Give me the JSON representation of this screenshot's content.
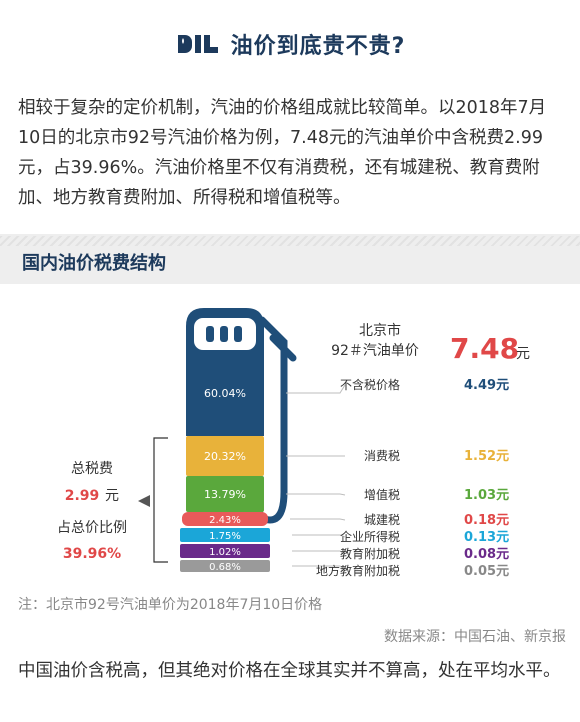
{
  "header": {
    "logo_text": "OIL",
    "title": "油价到底贵不贵?"
  },
  "intro": {
    "paragraph": "相较于复杂的定价机制，汽油的价格组成就比较简单。以2018年7月10日的北京市92号汽油价格为例，7.48元的汽油单价中含税费2.99元，占39.96%。汽油价格里不仅有消费税，还有城建税、教育费附加、地方教育费附加、所得税和增值税等。"
  },
  "section": {
    "title": "国内油价税费结构"
  },
  "chart_data": {
    "type": "bar",
    "title": "国内油价税费结构",
    "price_label_line1": "北京市",
    "price_label_line2": "92＃汽油单价",
    "price_value": "7.48",
    "price_unit": "元",
    "categories": [
      "不含税价格",
      "消费税",
      "增值税",
      "城建税",
      "企业所得税",
      "教育附加税",
      "地方教育附加税"
    ],
    "percent_labels": [
      "60.04%",
      "20.32%",
      "13.79%",
      "2.43%",
      "1.75%",
      "1.02%",
      "0.68%"
    ],
    "percents": [
      60.04,
      20.32,
      13.79,
      2.43,
      1.75,
      1.02,
      0.68
    ],
    "values": [
      4.49,
      1.52,
      1.03,
      0.18,
      0.13,
      0.08,
      0.05
    ],
    "value_labels": [
      "4.49元",
      "1.52元",
      "1.03元",
      "0.18元",
      "0.13元",
      "0.08元",
      "0.05元"
    ],
    "colors": [
      "#1f4e79",
      "#e8b23a",
      "#5aa83c",
      "#e85a5a",
      "#1ba6d8",
      "#6a2a8a",
      "#9a9a9a"
    ],
    "value_colors": [
      "#1f4e79",
      "#e8b23a",
      "#5aa83c",
      "#e04848",
      "#1ba6d8",
      "#6a2a8a",
      "#888888"
    ],
    "total_tax_label": "总税费",
    "total_tax_value": "2.99",
    "total_tax_unit": "元",
    "ratio_label": "占总价比例",
    "ratio_value": "39.96%",
    "accent_color": "#e04848",
    "pump_color": "#1f4e79"
  },
  "footer": {
    "note": "注：北京市92号汽油单价为2018年7月10日价格",
    "source": "数据来源：中国石油、新京报",
    "conclusion": "中国油价含税高，但其绝对价格在全球其实并不算高，处在平均水平。"
  }
}
